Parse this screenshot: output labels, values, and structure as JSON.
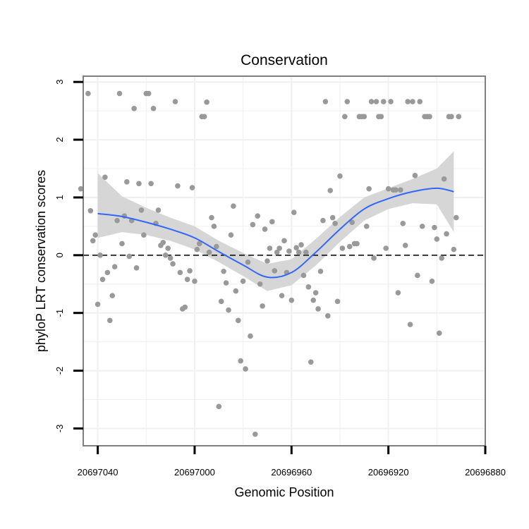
{
  "chart_data": {
    "type": "scatter",
    "title": "Conservation",
    "xlabel": "Genomic Position",
    "ylabel": "phyloP LRT conservation scores",
    "x_reversed": true,
    "xlim": [
      20697046,
      20696880
    ],
    "ylim": [
      -3.3,
      3.1
    ],
    "x_ticks": [
      20697040,
      20697000,
      20696960,
      20696920,
      20696880
    ],
    "x_tick_labels": [
      "20697040",
      "20697000",
      "20696960",
      "20696920",
      "20696880"
    ],
    "y_ticks": [
      -3,
      -2,
      -1,
      0,
      1,
      2,
      3
    ],
    "y_tick_labels": [
      "-3",
      "-2",
      "-1",
      "0",
      "1",
      "2",
      "3"
    ],
    "grid": true,
    "reference_line": {
      "y": 0,
      "style": "dashed",
      "color": "#000000"
    },
    "colors": {
      "points": "#999999",
      "smooth": "#3366ff",
      "band": "#d6d6d6",
      "grid": "#f0f0f0",
      "frame": "#7f7f7f"
    },
    "series": [
      {
        "kind": "points",
        "points": [
          [
            20697047,
            1.15
          ],
          [
            20697044,
            2.8
          ],
          [
            20697043,
            0.77
          ],
          [
            20697042,
            0.25
          ],
          [
            20697041,
            0.35
          ],
          [
            20697040,
            -0.85
          ],
          [
            20697039,
            0.0
          ],
          [
            20697038,
            -0.42
          ],
          [
            20697037,
            1.35
          ],
          [
            20697036,
            -0.3
          ],
          [
            20697035,
            -1.13
          ],
          [
            20697034,
            -0.7
          ],
          [
            20697033,
            -0.2
          ],
          [
            20697032,
            0.6
          ],
          [
            20697031,
            2.8
          ],
          [
            20697030,
            0.2
          ],
          [
            20697029,
            0.68
          ],
          [
            20697028,
            1.27
          ],
          [
            20697027,
            -0.02
          ],
          [
            20697026,
            0.6
          ],
          [
            20697025,
            2.54
          ],
          [
            20697024,
            -0.22
          ],
          [
            20697023,
            1.24
          ],
          [
            20697022,
            0.78
          ],
          [
            20697021,
            0.35
          ],
          [
            20697020,
            2.8
          ],
          [
            20697019,
            2.8
          ],
          [
            20697018,
            1.24
          ],
          [
            20697017,
            2.54
          ],
          [
            20697016,
            0.55
          ],
          [
            20697015,
            0.78
          ],
          [
            20697014,
            0.17
          ],
          [
            20697013,
            0.22
          ],
          [
            20697012,
            0.0
          ],
          [
            20697011,
            0.12
          ],
          [
            20697010,
            -0.05
          ],
          [
            20697009,
            -0.15
          ],
          [
            20697008,
            2.66
          ],
          [
            20697007,
            1.2
          ],
          [
            20697006,
            -0.3
          ],
          [
            20697005,
            -0.93
          ],
          [
            20697004,
            -0.9
          ],
          [
            20697003,
            -0.42
          ],
          [
            20697002,
            -0.27
          ],
          [
            20697001,
            1.17
          ],
          [
            20697000,
            -0.45
          ],
          [
            20696999,
            0.1
          ],
          [
            20696998,
            0.2
          ],
          [
            20696997,
            2.4
          ],
          [
            20696996,
            2.4
          ],
          [
            20696995,
            2.65
          ],
          [
            20696994,
            0.05
          ],
          [
            20696993,
            0.65
          ],
          [
            20696992,
            0.5
          ],
          [
            20696991,
            0.15
          ],
          [
            20696990,
            -2.62
          ],
          [
            20696989,
            -0.8
          ],
          [
            20696988,
            -0.28
          ],
          [
            20696987,
            -0.48
          ],
          [
            20696986,
            -0.95
          ],
          [
            20696985,
            0.35
          ],
          [
            20696984,
            0.85
          ],
          [
            20696983,
            -0.62
          ],
          [
            20696982,
            -1.13
          ],
          [
            20696981,
            -1.83
          ],
          [
            20696980,
            -0.45
          ],
          [
            20696979,
            -1.97
          ],
          [
            20696978,
            -0.12
          ],
          [
            20696977,
            -1.4
          ],
          [
            20696976,
            0.53
          ],
          [
            20696975,
            -3.1
          ],
          [
            20696974,
            0.68
          ],
          [
            20696973,
            -0.5
          ],
          [
            20696972,
            -0.88
          ],
          [
            20696971,
            0.45
          ],
          [
            20696970,
            -0.1
          ],
          [
            20696969,
            0.12
          ],
          [
            20696968,
            0.58
          ],
          [
            20696967,
            -0.27
          ],
          [
            20696966,
            0.05
          ],
          [
            20696965,
            0.12
          ],
          [
            20696964,
            -0.7
          ],
          [
            20696963,
            0.25
          ],
          [
            20696962,
            -0.3
          ],
          [
            20696961,
            0.07
          ],
          [
            20696960,
            -0.78
          ],
          [
            20696959,
            0.74
          ],
          [
            20696958,
            0.13
          ],
          [
            20696957,
            0.05
          ],
          [
            20696956,
            0.18
          ],
          [
            20696955,
            -0.35
          ],
          [
            20696954,
            0.05
          ],
          [
            20696953,
            -0.55
          ],
          [
            20696952,
            -1.85
          ],
          [
            20696951,
            -0.78
          ],
          [
            20696950,
            -0.65
          ],
          [
            20696949,
            -0.93
          ],
          [
            20696948,
            -0.28
          ],
          [
            20696947,
            0.6
          ],
          [
            20696946,
            2.66
          ],
          [
            20696945,
            -1.05
          ],
          [
            20696944,
            1.12
          ],
          [
            20696943,
            0.65
          ],
          [
            20696942,
            0.55
          ],
          [
            20696941,
            -0.8
          ],
          [
            20696940,
            1.37
          ],
          [
            20696939,
            0.12
          ],
          [
            20696938,
            2.4
          ],
          [
            20696937,
            2.66
          ],
          [
            20696936,
            0.15
          ],
          [
            20696935,
            0.57
          ],
          [
            20696934,
            0.2
          ],
          [
            20696933,
            0.2
          ],
          [
            20696932,
            2.4
          ],
          [
            20696931,
            2.4
          ],
          [
            20696930,
            2.4
          ],
          [
            20696929,
            0.5
          ],
          [
            20696928,
            1.15
          ],
          [
            20696927,
            2.66
          ],
          [
            20696926,
            -0.05
          ],
          [
            20696925,
            2.66
          ],
          [
            20696924,
            2.4
          ],
          [
            20696923,
            2.4
          ],
          [
            20696922,
            2.66
          ],
          [
            20696921,
            0.12
          ],
          [
            20696920,
            1.15
          ],
          [
            20696919,
            2.66
          ],
          [
            20696918,
            1.13
          ],
          [
            20696917,
            1.13
          ],
          [
            20696916,
            -0.65
          ],
          [
            20696915,
            1.13
          ],
          [
            20696914,
            0.55
          ],
          [
            20696913,
            0.17
          ],
          [
            20696912,
            2.66
          ],
          [
            20696911,
            -1.2
          ],
          [
            20696910,
            2.66
          ],
          [
            20696909,
            1.38
          ],
          [
            20696908,
            -0.35
          ],
          [
            20696907,
            2.66
          ],
          [
            20696906,
            0.5
          ],
          [
            20696905,
            2.4
          ],
          [
            20696904,
            2.4
          ],
          [
            20696903,
            2.4
          ],
          [
            20696902,
            -0.45
          ],
          [
            20696901,
            0.48
          ],
          [
            20696900,
            0.28
          ],
          [
            20696899,
            -1.35
          ],
          [
            20696898,
            -0.05
          ],
          [
            20696897,
            1.32
          ],
          [
            20696896,
            0.37
          ],
          [
            20696895,
            2.4
          ],
          [
            20696894,
            2.4
          ],
          [
            20696893,
            0.1
          ],
          [
            20696892,
            0.65
          ],
          [
            20696891,
            2.4
          ]
        ]
      },
      {
        "kind": "smooth",
        "x": [
          20697040,
          20697030,
          20697020,
          20697010,
          20697000,
          20696990,
          20696980,
          20696970,
          20696960,
          20696950,
          20696940,
          20696930,
          20696920,
          20696910,
          20696900,
          20696893
        ],
        "y": [
          0.72,
          0.67,
          0.57,
          0.45,
          0.3,
          0.06,
          -0.17,
          -0.38,
          -0.3,
          0.05,
          0.45,
          0.8,
          0.98,
          1.1,
          1.16,
          1.1
        ],
        "lower": [
          0.3,
          0.4,
          0.35,
          0.25,
          0.1,
          -0.12,
          -0.36,
          -0.62,
          -0.52,
          -0.18,
          0.23,
          0.6,
          0.8,
          0.9,
          0.88,
          0.4
        ],
        "upper": [
          1.42,
          1.02,
          0.82,
          0.65,
          0.5,
          0.25,
          0.04,
          -0.15,
          -0.07,
          0.28,
          0.66,
          1.0,
          1.16,
          1.32,
          1.5,
          1.8
        ]
      }
    ]
  }
}
